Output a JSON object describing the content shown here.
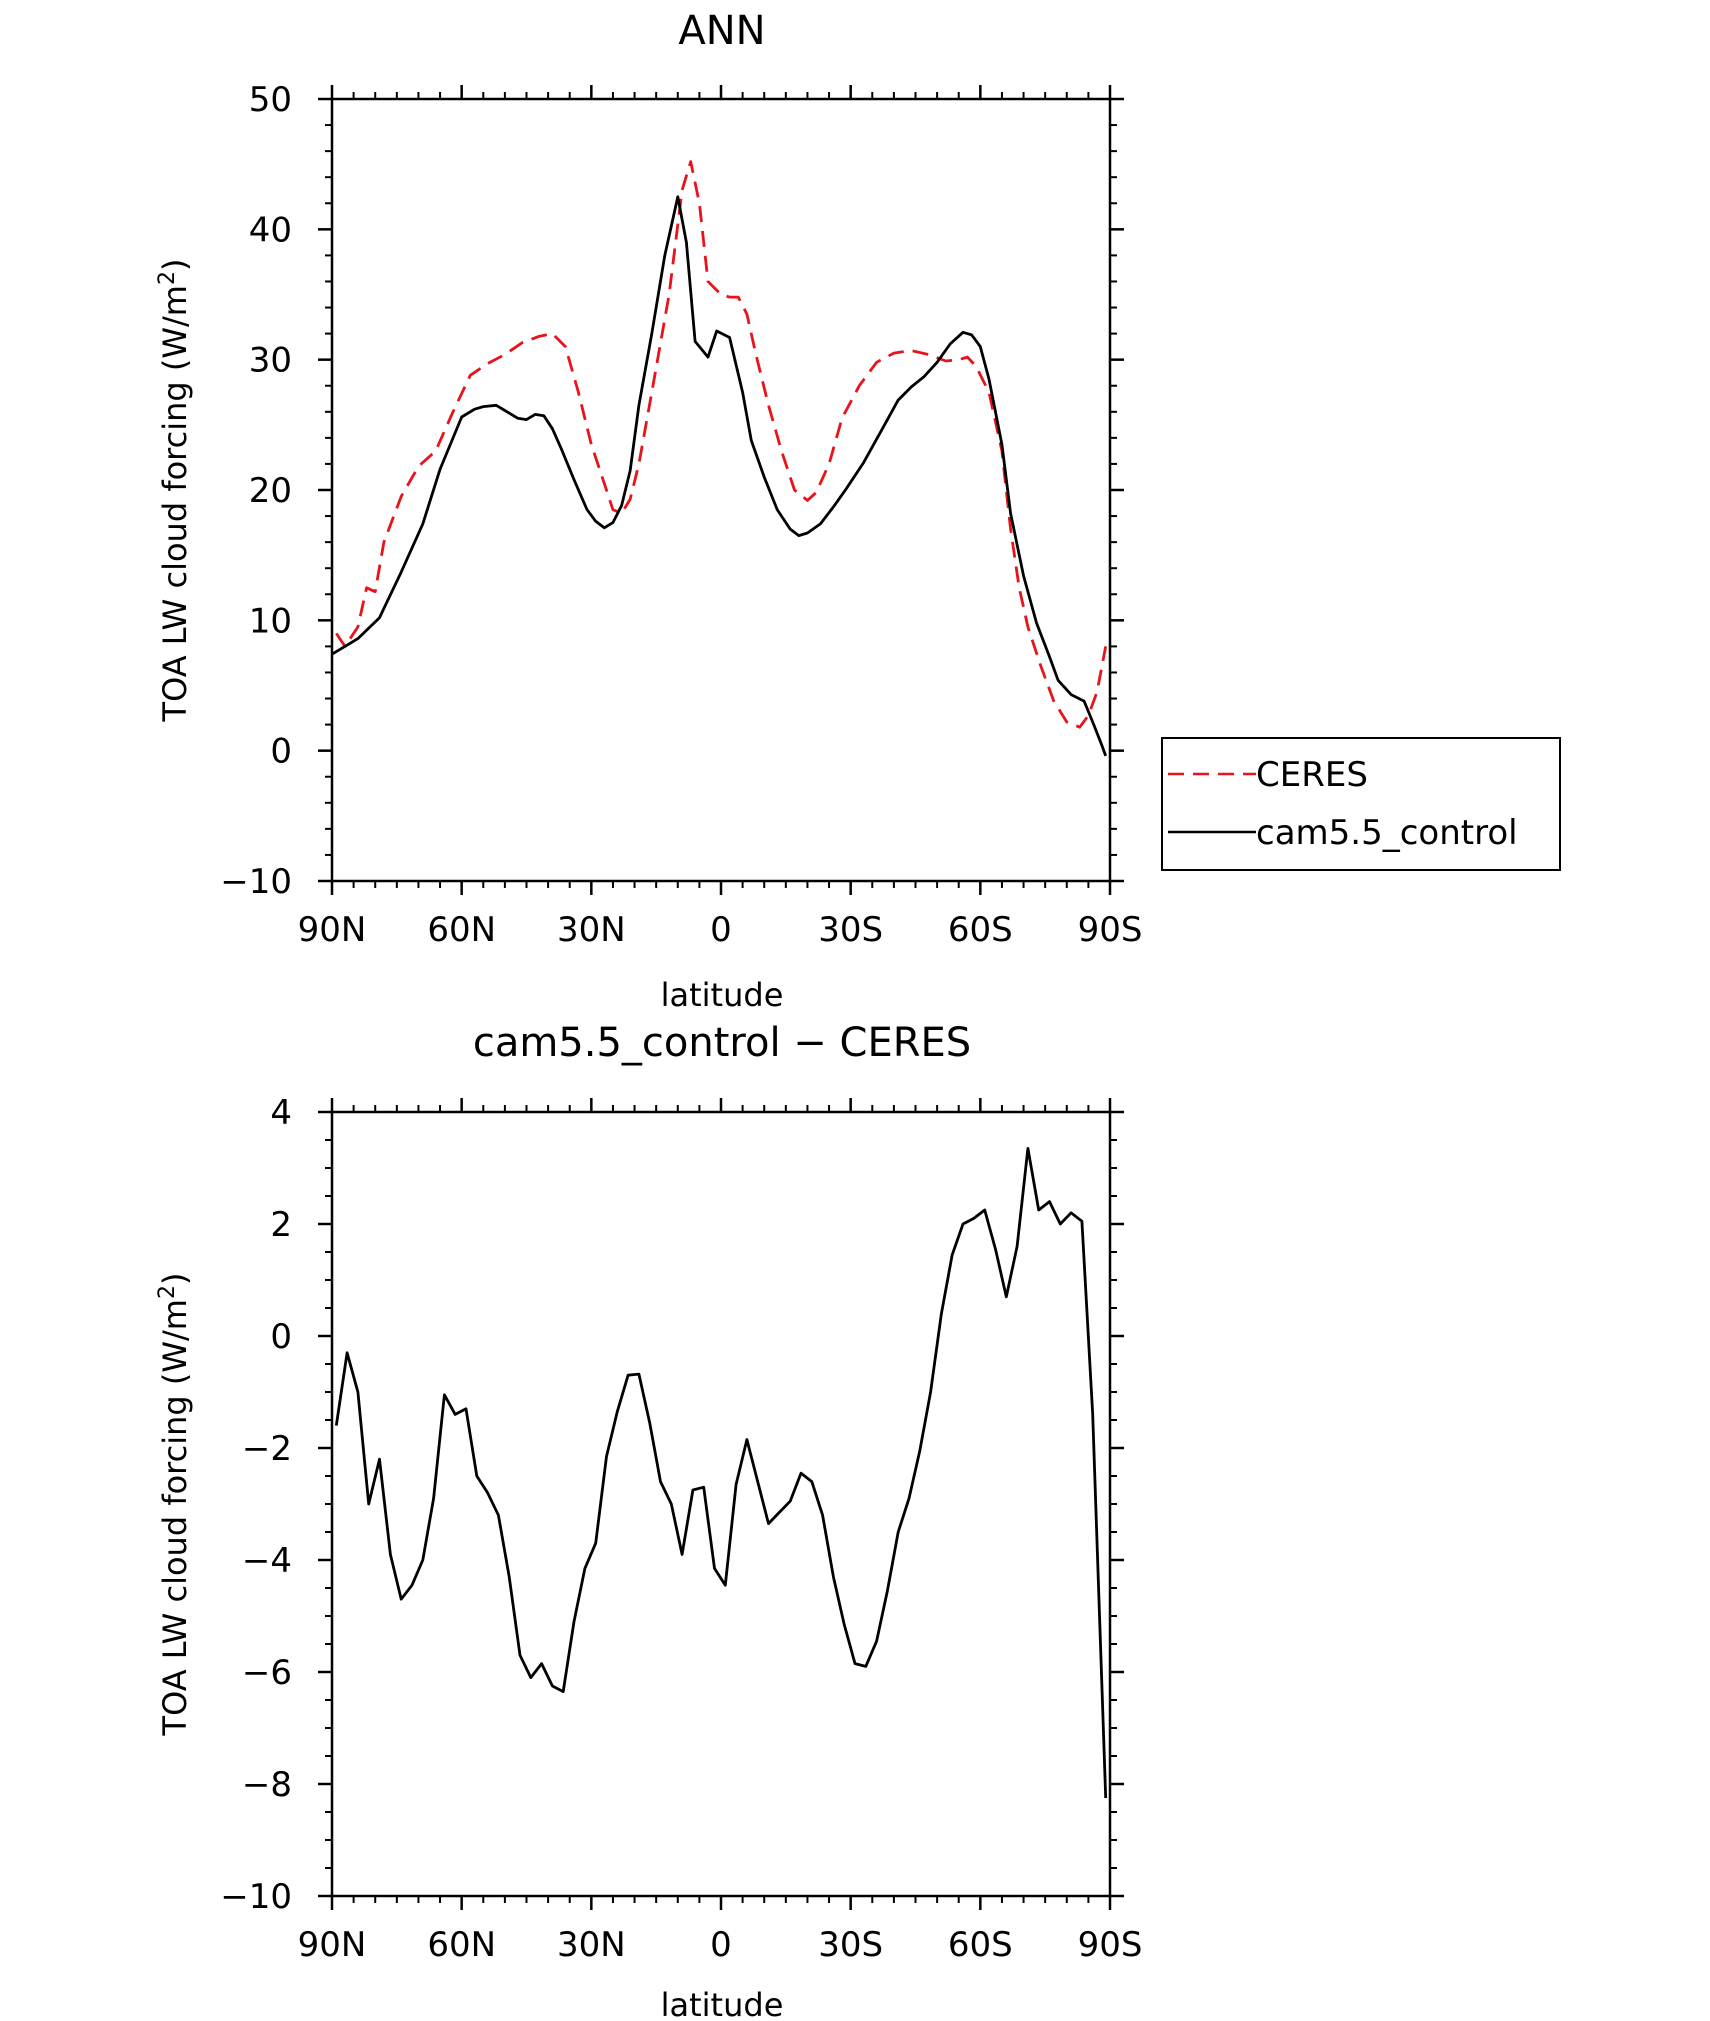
{
  "chart_data": [
    {
      "type": "line",
      "title": "ANN",
      "xlabel": "latitude",
      "ylabel_main": "TOA LW cloud forcing (W/m",
      "ylabel_sup": "2",
      "ylabel_close": ")",
      "xlim": [
        -90,
        90
      ],
      "ylim": [
        -10,
        50
      ],
      "x_ticks": [
        {
          "value": -90,
          "label": "90N"
        },
        {
          "value": -60,
          "label": "60N"
        },
        {
          "value": -30,
          "label": "30N"
        },
        {
          "value": 0,
          "label": "0"
        },
        {
          "value": 30,
          "label": "30S"
        },
        {
          "value": 60,
          "label": "60S"
        },
        {
          "value": 90,
          "label": "90S"
        }
      ],
      "y_ticks": [
        {
          "value": -10,
          "label": "−10"
        },
        {
          "value": 0,
          "label": "0"
        },
        {
          "value": 10,
          "label": "10"
        },
        {
          "value": 20,
          "label": "20"
        },
        {
          "value": 30,
          "label": "30"
        },
        {
          "value": 40,
          "label": "40"
        },
        {
          "value": 50,
          "label": "50"
        }
      ],
      "grid": false,
      "legend": {
        "placement": "right",
        "entries": [
          {
            "label": "CERES",
            "series": 0
          },
          {
            "label": "cam5.5_control",
            "series": 1
          }
        ]
      },
      "series": [
        {
          "name": "CERES",
          "color": "#e8131b",
          "dash": "dashed",
          "points": [
            [
              -89,
              9
            ],
            [
              -87,
              8
            ],
            [
              -84,
              9.5
            ],
            [
              -82,
              12.5
            ],
            [
              -80,
              12.2
            ],
            [
              -78,
              16
            ],
            [
              -74,
              19.5
            ],
            [
              -70,
              21.8
            ],
            [
              -66,
              23
            ],
            [
              -62,
              26
            ],
            [
              -58,
              28.8
            ],
            [
              -54,
              29.7
            ],
            [
              -50,
              30.4
            ],
            [
              -46,
              31.3
            ],
            [
              -42,
              31.8
            ],
            [
              -39,
              32
            ],
            [
              -36,
              31
            ],
            [
              -33,
              27.5
            ],
            [
              -30,
              23.5
            ],
            [
              -27,
              20.5
            ],
            [
              -25,
              18.5
            ],
            [
              -23,
              18.2
            ],
            [
              -21,
              19.3
            ],
            [
              -19,
              22
            ],
            [
              -16,
              27.5
            ],
            [
              -12,
              35
            ],
            [
              -9,
              43
            ],
            [
              -7,
              45.2
            ],
            [
              -5,
              42
            ],
            [
              -3,
              36
            ],
            [
              0,
              35
            ],
            [
              2,
              34.8
            ],
            [
              4,
              34.8
            ],
            [
              6,
              33.5
            ],
            [
              8,
              30.5
            ],
            [
              11,
              26.5
            ],
            [
              14,
              23
            ],
            [
              17,
              20
            ],
            [
              20,
              19.2
            ],
            [
              22,
              19.8
            ],
            [
              25,
              22
            ],
            [
              28,
              25.5
            ],
            [
              32,
              28
            ],
            [
              36,
              29.8
            ],
            [
              40,
              30.5
            ],
            [
              44,
              30.7
            ],
            [
              48,
              30.4
            ],
            [
              52,
              29.9
            ],
            [
              55,
              30
            ],
            [
              57,
              30.2
            ],
            [
              59,
              29.5
            ],
            [
              62,
              27.5
            ],
            [
              65,
              23
            ],
            [
              67,
              17
            ],
            [
              69,
              12.5
            ],
            [
              71,
              9.5
            ],
            [
              74,
              6.5
            ],
            [
              77,
              3.8
            ],
            [
              80,
              2.2
            ],
            [
              83,
              1.8
            ],
            [
              85,
              2.7
            ],
            [
              87,
              4.5
            ],
            [
              89,
              8
            ]
          ]
        },
        {
          "name": "cam5.5_control",
          "color": "#000000",
          "dash": "solid",
          "points": [
            [
              -90,
              7.4
            ],
            [
              -86,
              8.2
            ],
            [
              -84,
              8.6
            ],
            [
              -79,
              10.2
            ],
            [
              -74,
              13.7
            ],
            [
              -69,
              17.4
            ],
            [
              -65,
              21.6
            ],
            [
              -60,
              25.6
            ],
            [
              -57,
              26.2
            ],
            [
              -55,
              26.4
            ],
            [
              -52,
              26.5
            ],
            [
              -50,
              26.1
            ],
            [
              -47,
              25.5
            ],
            [
              -45,
              25.4
            ],
            [
              -43,
              25.8
            ],
            [
              -41,
              25.7
            ],
            [
              -39,
              24.7
            ],
            [
              -37,
              23.2
            ],
            [
              -34,
              20.8
            ],
            [
              -31,
              18.5
            ],
            [
              -29,
              17.6
            ],
            [
              -27,
              17.1
            ],
            [
              -25,
              17.5
            ],
            [
              -23,
              18.8
            ],
            [
              -21,
              21.5
            ],
            [
              -19,
              26.5
            ],
            [
              -16,
              32
            ],
            [
              -13,
              38
            ],
            [
              -10,
              42.5
            ],
            [
              -8,
              39
            ],
            [
              -6,
              31.4
            ],
            [
              -3,
              30.2
            ],
            [
              -1,
              32.2
            ],
            [
              2,
              31.7
            ],
            [
              5,
              27.5
            ],
            [
              7,
              23.8
            ],
            [
              10,
              21
            ],
            [
              13,
              18.5
            ],
            [
              16,
              17
            ],
            [
              18,
              16.5
            ],
            [
              20,
              16.7
            ],
            [
              23,
              17.4
            ],
            [
              26,
              18.7
            ],
            [
              29,
              20.1
            ],
            [
              33,
              22.1
            ],
            [
              37,
              24.5
            ],
            [
              41,
              26.9
            ],
            [
              44,
              27.9
            ],
            [
              47,
              28.7
            ],
            [
              50,
              29.8
            ],
            [
              53,
              31.2
            ],
            [
              56,
              32.1
            ],
            [
              58,
              31.9
            ],
            [
              60,
              31
            ],
            [
              62,
              28.5
            ],
            [
              65,
              23.5
            ],
            [
              67,
              18.2
            ],
            [
              70,
              13.4
            ],
            [
              73,
              9.8
            ],
            [
              76,
              7.2
            ],
            [
              78,
              5.4
            ],
            [
              81,
              4.3
            ],
            [
              84,
              3.8
            ],
            [
              86,
              2.2
            ],
            [
              88,
              0.5
            ],
            [
              89,
              -0.4
            ]
          ]
        }
      ]
    },
    {
      "type": "line",
      "title": "cam5.5_control − CERES",
      "xlabel": "latitude",
      "ylabel_main": "TOA LW cloud forcing (W/m",
      "ylabel_sup": "2",
      "ylabel_close": ")",
      "xlim": [
        -90,
        90
      ],
      "ylim": [
        -10,
        4
      ],
      "x_ticks": [
        {
          "value": -90,
          "label": "90N"
        },
        {
          "value": -60,
          "label": "60N"
        },
        {
          "value": -30,
          "label": "30N"
        },
        {
          "value": 0,
          "label": "0"
        },
        {
          "value": 30,
          "label": "30S"
        },
        {
          "value": 60,
          "label": "60S"
        },
        {
          "value": 90,
          "label": "90S"
        }
      ],
      "y_ticks": [
        {
          "value": -10,
          "label": "−10"
        },
        {
          "value": -8,
          "label": "−8"
        },
        {
          "value": -6,
          "label": "−6"
        },
        {
          "value": -4,
          "label": "−4"
        },
        {
          "value": -2,
          "label": "−2"
        },
        {
          "value": 0,
          "label": "0"
        },
        {
          "value": 2,
          "label": "2"
        },
        {
          "value": 4,
          "label": "4"
        }
      ],
      "grid": false,
      "series": [
        {
          "color": "#000000",
          "dash": "solid",
          "points": [
            [
              -89,
              -1.6
            ],
            [
              -86.5,
              -0.3
            ],
            [
              -84,
              -1
            ],
            [
              -81.5,
              -3
            ],
            [
              -79,
              -2.2
            ],
            [
              -76.5,
              -3.9
            ],
            [
              -74,
              -4.7
            ],
            [
              -71.5,
              -4.45
            ],
            [
              -69,
              -4
            ],
            [
              -66.5,
              -2.9
            ],
            [
              -64,
              -1.05
            ],
            [
              -61.5,
              -1.4
            ],
            [
              -59,
              -1.3
            ],
            [
              -56.5,
              -2.5
            ],
            [
              -54,
              -2.8
            ],
            [
              -51.5,
              -3.2
            ],
            [
              -49,
              -4.3
            ],
            [
              -46.5,
              -5.7
            ],
            [
              -44,
              -6.1
            ],
            [
              -41.5,
              -5.85
            ],
            [
              -39,
              -6.25
            ],
            [
              -36.5,
              -6.35
            ],
            [
              -34,
              -5.1
            ],
            [
              -31.5,
              -4.15
            ],
            [
              -29,
              -3.7
            ],
            [
              -26.5,
              -2.15
            ],
            [
              -24,
              -1.35
            ],
            [
              -21.5,
              -0.7
            ],
            [
              -19,
              -0.68
            ],
            [
              -16.5,
              -1.55
            ],
            [
              -14,
              -2.6
            ],
            [
              -11.5,
              -3
            ],
            [
              -9,
              -3.9
            ],
            [
              -6.5,
              -2.75
            ],
            [
              -4,
              -2.7
            ],
            [
              -1.5,
              -4.15
            ],
            [
              1,
              -4.45
            ],
            [
              3.5,
              -2.65
            ],
            [
              6,
              -1.85
            ],
            [
              8.5,
              -2.6
            ],
            [
              11,
              -3.35
            ],
            [
              13.5,
              -3.15
            ],
            [
              16,
              -2.95
            ],
            [
              18.5,
              -2.45
            ],
            [
              21,
              -2.6
            ],
            [
              23.5,
              -3.2
            ],
            [
              26,
              -4.3
            ],
            [
              28.5,
              -5.15
            ],
            [
              31,
              -5.85
            ],
            [
              33.5,
              -5.9
            ],
            [
              36,
              -5.45
            ],
            [
              38.5,
              -4.55
            ],
            [
              41,
              -3.5
            ],
            [
              43.5,
              -2.9
            ],
            [
              46,
              -2.05
            ],
            [
              48.5,
              -1
            ],
            [
              51,
              0.4
            ],
            [
              53.5,
              1.45
            ],
            [
              56,
              2
            ],
            [
              58.5,
              2.1
            ],
            [
              61,
              2.25
            ],
            [
              63.5,
              1.55
            ],
            [
              66,
              0.7
            ],
            [
              68.5,
              1.6
            ],
            [
              71,
              3.35
            ],
            [
              73.5,
              2.25
            ],
            [
              76,
              2.4
            ],
            [
              78.5,
              2
            ],
            [
              81,
              2.2
            ],
            [
              83.5,
              2.05
            ],
            [
              86,
              -1.4
            ],
            [
              89,
              -8.25
            ]
          ]
        }
      ]
    }
  ]
}
